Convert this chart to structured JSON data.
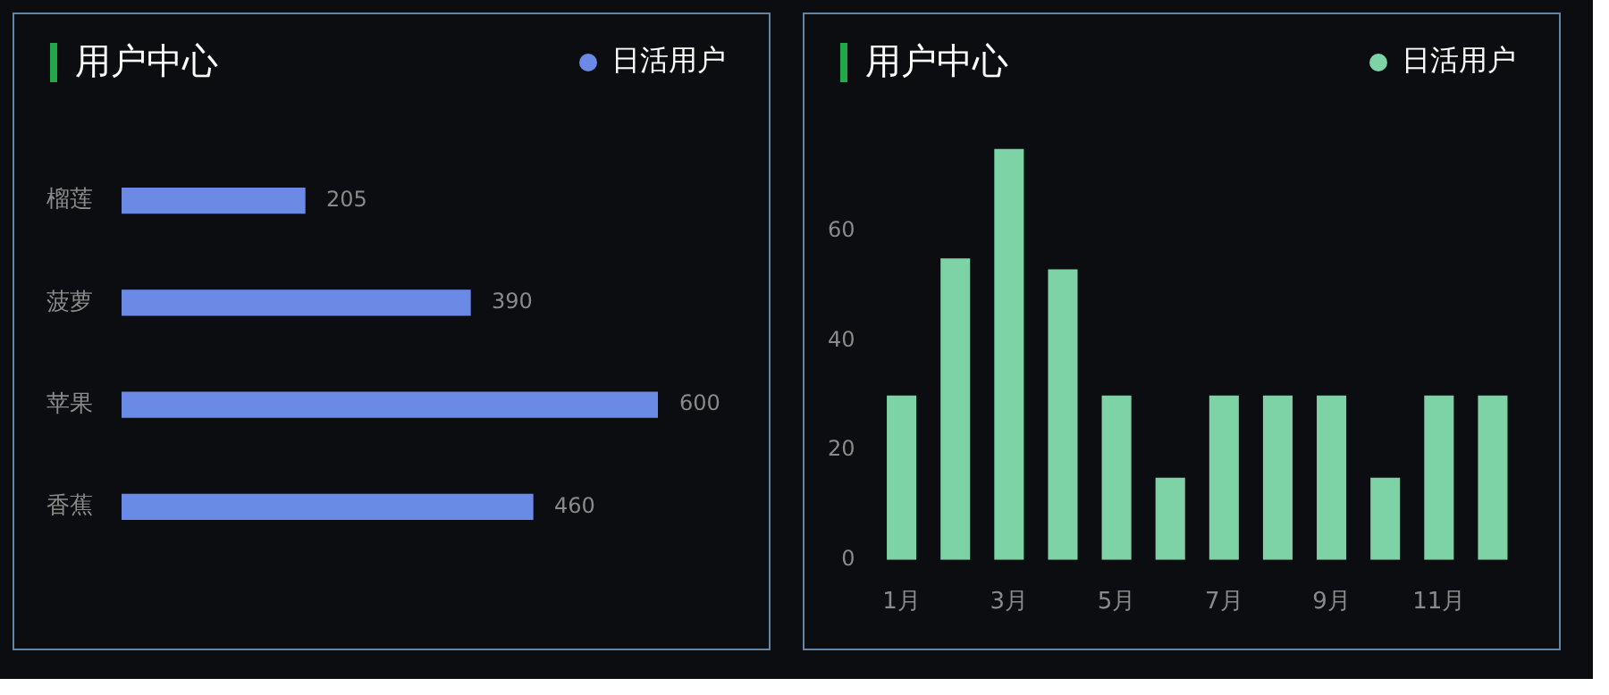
{
  "chart_data": [
    {
      "type": "bar",
      "title": "用户中心",
      "orientation": "horizontal",
      "categories": [
        "榴莲",
        "菠萝",
        "苹果",
        "香蕉"
      ],
      "series": [
        {
          "name": "日活用户",
          "color": "#6b8ae6",
          "values": [
            205,
            390,
            600,
            460
          ]
        }
      ],
      "data_labels": true,
      "tick_labels": "y",
      "grid": false,
      "legend": "top right"
    },
    {
      "type": "bar",
      "title": "用户中心",
      "categories": [
        "1月",
        null,
        "3月",
        null,
        "5月",
        null,
        "7月",
        null,
        "9月",
        null,
        "11月",
        null
      ],
      "series": [
        {
          "name": "日活用户",
          "color": "#7dd3a6",
          "values": [
            30,
            55,
            75,
            53,
            30,
            15,
            30,
            30,
            30,
            15,
            30,
            30
          ]
        }
      ],
      "ylim": [
        0,
        75
      ],
      "yticks": [
        0,
        20,
        40,
        60
      ],
      "grid": false,
      "legend": "top right"
    }
  ]
}
